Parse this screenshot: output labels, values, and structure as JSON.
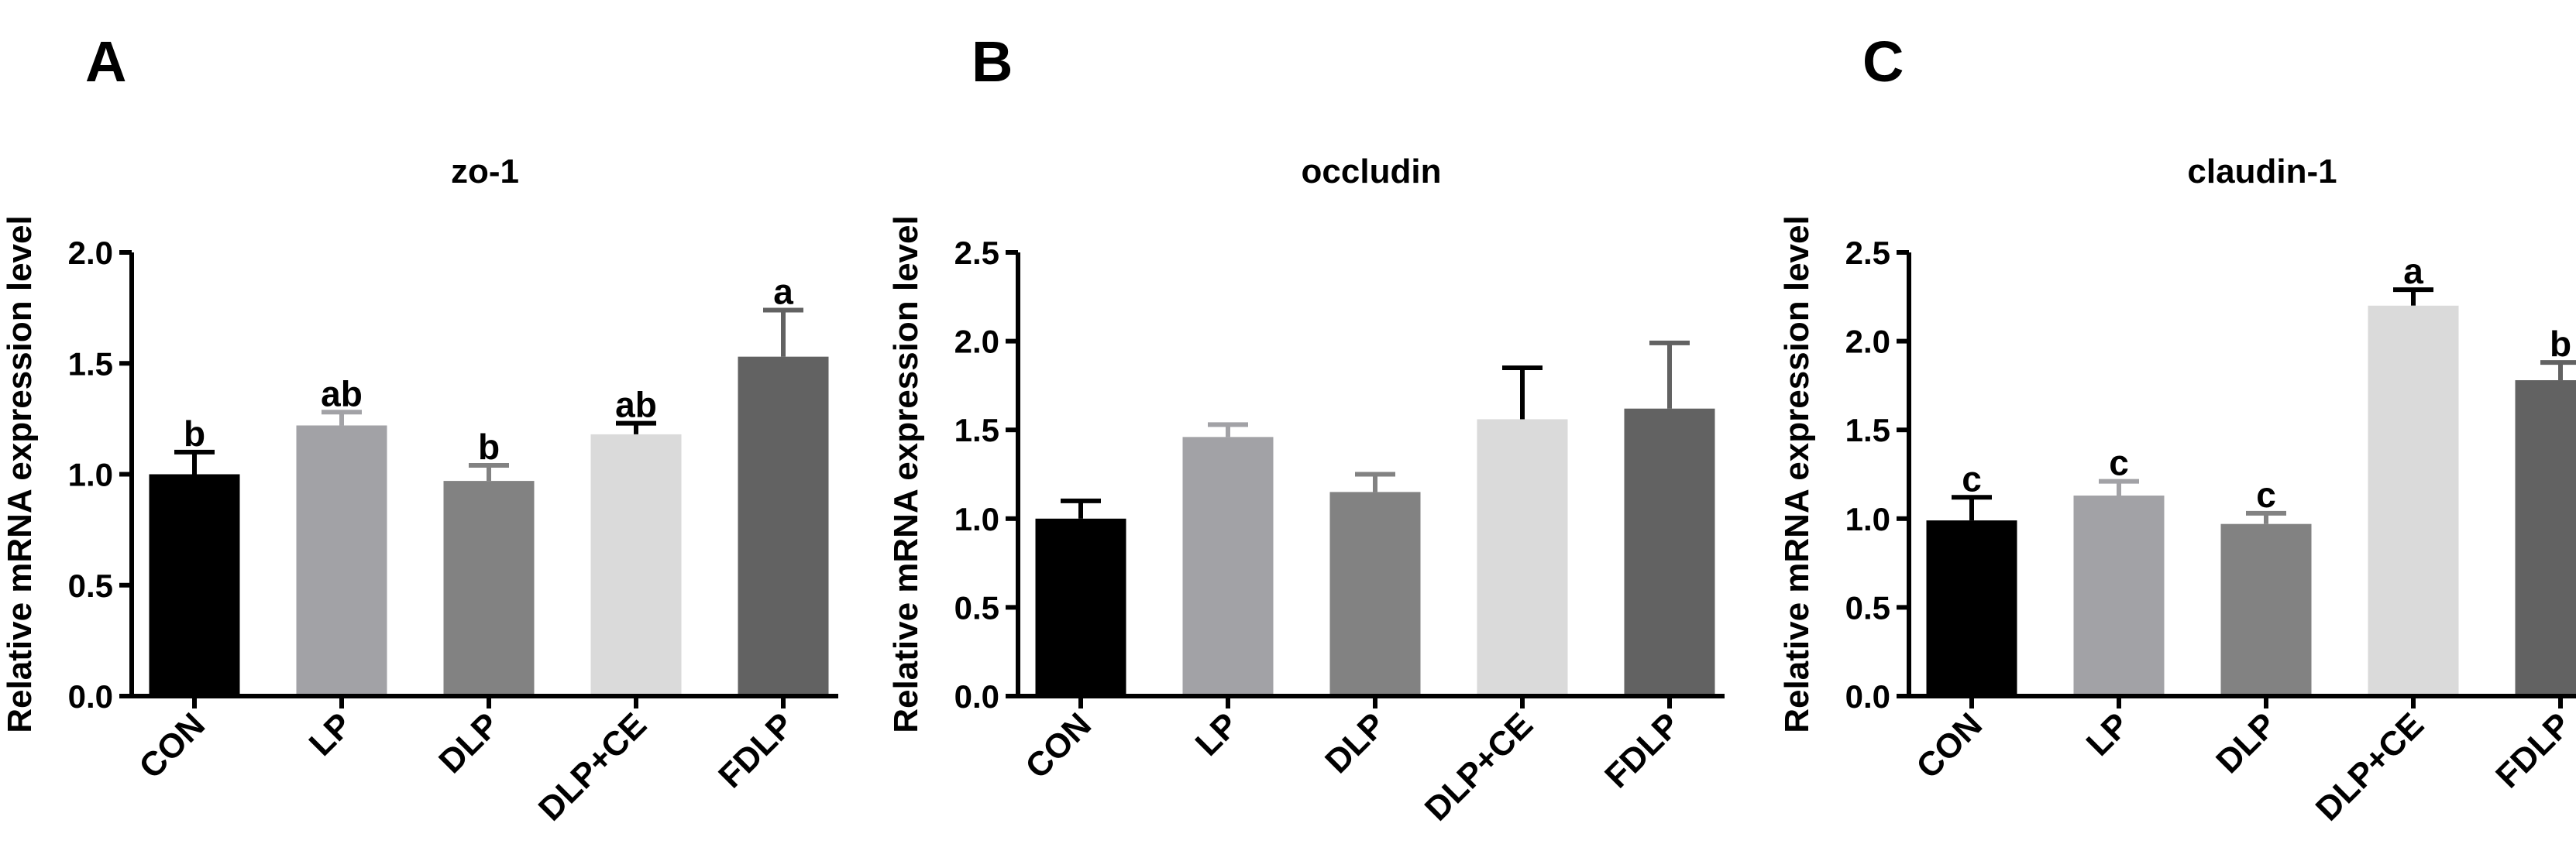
{
  "chart_data": [
    {
      "type": "bar",
      "panel_label": "A",
      "title": "zo-1",
      "y_label": "Relative mRNA expression level",
      "categories": [
        "CON",
        "LP",
        "DLP",
        "DLP+CE",
        "FDLP"
      ],
      "values": [
        1.0,
        1.22,
        0.97,
        1.18,
        1.53
      ],
      "errors": [
        0.1,
        0.06,
        0.07,
        0.05,
        0.21
      ],
      "colors": [
        "#000000",
        "#a2a2a6",
        "#828282",
        "#dadada",
        "#626262"
      ],
      "annotations": [
        "b",
        "ab",
        "b",
        "ab",
        "a"
      ],
      "ylim": [
        0,
        2.0
      ],
      "yticks": [
        {
          "value": 0,
          "label": "0.0"
        },
        {
          "value": 0.5,
          "label": "0.5"
        },
        {
          "value": 1.0,
          "label": "1.0"
        },
        {
          "value": 1.5,
          "label": "1.5"
        },
        {
          "value": 2.0,
          "label": "2.0"
        }
      ]
    },
    {
      "type": "bar",
      "panel_label": "B",
      "title": "occludin",
      "y_label": "Relative mRNA expression level",
      "categories": [
        "CON",
        "LP",
        "DLP",
        "DLP+CE",
        "FDLP"
      ],
      "values": [
        1.0,
        1.46,
        1.15,
        1.56,
        1.62
      ],
      "errors": [
        0.1,
        0.07,
        0.1,
        0.29,
        0.37
      ],
      "colors": [
        "#000000",
        "#a2a2a6",
        "#828282",
        "#dadada",
        "#626262"
      ],
      "ylim": [
        0,
        2.5
      ],
      "yticks": [
        {
          "value": 0,
          "label": "0.0"
        },
        {
          "value": 0.5,
          "label": "0.5"
        },
        {
          "value": 1.0,
          "label": "1.0"
        },
        {
          "value": 1.5,
          "label": "1.5"
        },
        {
          "value": 2.0,
          "label": "2.0"
        },
        {
          "value": 2.5,
          "label": "2.5"
        }
      ]
    },
    {
      "type": "bar",
      "panel_label": "C",
      "title": "claudin-1",
      "y_label": "Relative mRNA expression level",
      "categories": [
        "CON",
        "LP",
        "DLP",
        "DLP+CE",
        "FDLP"
      ],
      "values": [
        0.99,
        1.13,
        0.97,
        2.2,
        1.78
      ],
      "errors": [
        0.13,
        0.08,
        0.06,
        0.09,
        0.1
      ],
      "colors": [
        "#000000",
        "#a2a2a6",
        "#828282",
        "#dadada",
        "#626262"
      ],
      "annotations": [
        "c",
        "c",
        "c",
        "a",
        "b"
      ],
      "ylim": [
        0,
        2.5
      ],
      "yticks": [
        {
          "value": 0,
          "label": "0.0"
        },
        {
          "value": 0.5,
          "label": "0.5"
        },
        {
          "value": 1.0,
          "label": "1.0"
        },
        {
          "value": 1.5,
          "label": "1.5"
        },
        {
          "value": 2.0,
          "label": "2.0"
        },
        {
          "value": 2.5,
          "label": "2.5"
        }
      ]
    }
  ]
}
